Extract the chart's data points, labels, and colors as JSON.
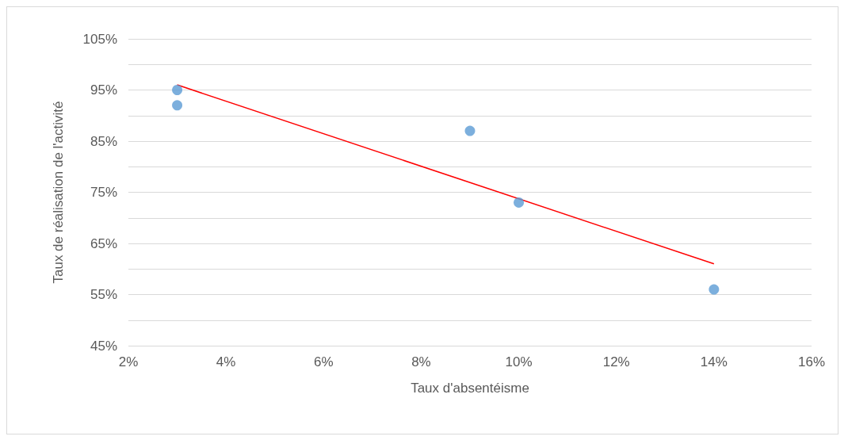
{
  "chart_data": {
    "type": "scatter",
    "xlabel": "Taux d'absentéisme",
    "ylabel": "Taux de réalisation de l'activité",
    "series": [
      {
        "color": "#5b9bd5",
        "x": [
          3,
          3,
          9,
          10,
          14
        ],
        "values": [
          95,
          92,
          87,
          73,
          56
        ],
        "marker": "circle"
      },
      {
        "type": "line",
        "color": "#ff0000",
        "x": [
          3,
          14
        ],
        "values": [
          96,
          61
        ],
        "marker": "none"
      }
    ],
    "xlim": [
      2,
      16
    ],
    "xticks": [
      {
        "value": 2,
        "label": "2%"
      },
      {
        "value": 4,
        "label": "4%"
      },
      {
        "value": 6,
        "label": "6%"
      },
      {
        "value": 8,
        "label": "8%"
      },
      {
        "value": 10,
        "label": "10%"
      },
      {
        "value": 12,
        "label": "12%"
      },
      {
        "value": 14,
        "label": "14%"
      },
      {
        "value": 16,
        "label": "16%"
      }
    ],
    "ylim": [
      45,
      105
    ],
    "yticks": [
      {
        "value": 45,
        "label": "45%"
      },
      {
        "value": 50,
        "label": null
      },
      {
        "value": 55,
        "label": "55%"
      },
      {
        "value": 60,
        "label": null
      },
      {
        "value": 65,
        "label": "65%"
      },
      {
        "value": 70,
        "label": null
      },
      {
        "value": 75,
        "label": "75%"
      },
      {
        "value": 80,
        "label": null
      },
      {
        "value": 85,
        "label": "85%"
      },
      {
        "value": 90,
        "label": null
      },
      {
        "value": 95,
        "label": "95%"
      },
      {
        "value": 100,
        "label": null
      },
      {
        "value": 105,
        "label": "105%"
      }
    ],
    "grid": "y"
  }
}
